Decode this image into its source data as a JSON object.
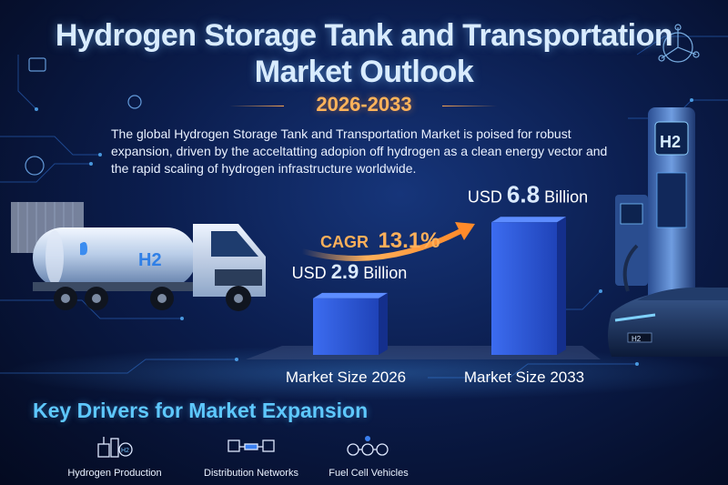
{
  "header": {
    "title_line1": "Hydrogen Storage Tank and Transportation",
    "title_line2": "Market Outlook",
    "period": "2026-2033"
  },
  "intro_text": "The global Hydrogen Storage Tank and Transportation Market is poised for robust expansion, driven by the acceltatting adopion off hydrogen as a clean energy vector and the rapid scaling of hydrogen infrastructure worldwide.",
  "chart_data": {
    "type": "bar",
    "categories": [
      "Market Size 2026",
      "Market Size 2033"
    ],
    "values": [
      2.9,
      6.8
    ],
    "value_prefix": "USD",
    "value_suffix": "Billion",
    "annotation": {
      "label": "CAGR",
      "value": "13.1%"
    },
    "colors": {
      "bar": "#2a56d8",
      "bar_light": "#5d8dff",
      "bar_dark": "#142f8c",
      "accent": "#ffa850"
    }
  },
  "illustrations": {
    "truck_tank_label": "H2",
    "station_label": "H2",
    "car_plate": "H2"
  },
  "drivers": {
    "title": "Key Drivers for Market Expansion",
    "items": [
      {
        "label": "Hydrogen Production",
        "icon": "factory-icon"
      },
      {
        "label": "Distribution Networks",
        "icon": "network-icon"
      },
      {
        "label": "Fuel Cell Vehicles",
        "icon": "vehicles-icon"
      }
    ]
  }
}
